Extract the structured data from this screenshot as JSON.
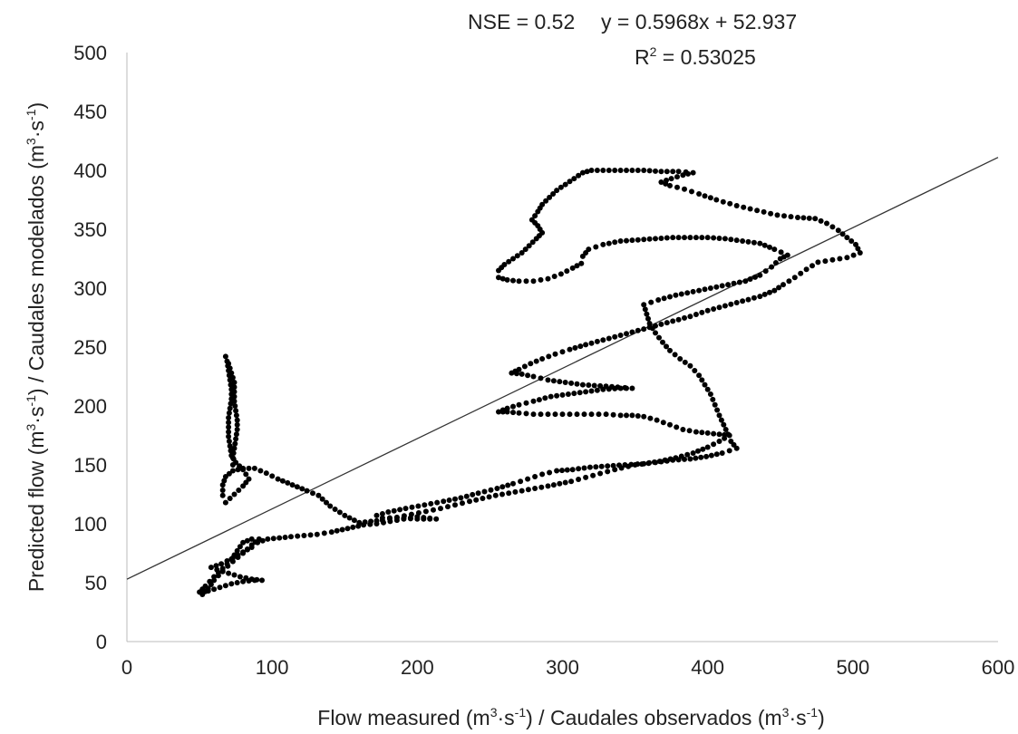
{
  "chart_data": {
    "type": "scatter",
    "title": "",
    "annotations": {
      "nse": "NSE = 0.52",
      "equation": "y = 0.5968x + 52.937",
      "r2_prefix": "R",
      "r2_power": "2",
      "r2_value": " = 0.53025"
    },
    "xlabel": {
      "part1": "Flow measured (m",
      "sup1": "3",
      "part2": "·s",
      "sup2": "-1",
      "part3": ") / Caudales observados (m",
      "sup3": "3",
      "part4": "·s",
      "sup4": "-1",
      "part5": ")"
    },
    "ylabel": {
      "part1": "Predicted flow (m",
      "sup1": "3",
      "part2": "·s",
      "sup2": "-1",
      "part3": ") / Caudales modelados (m",
      "sup3": "3",
      "part4": "·s",
      "sup4": "-1",
      "part5": ")"
    },
    "xlim": [
      0,
      600
    ],
    "ylim": [
      0,
      500
    ],
    "x_ticks": [
      0,
      100,
      200,
      300,
      400,
      500,
      600
    ],
    "y_ticks": [
      0,
      50,
      100,
      150,
      200,
      250,
      300,
      350,
      400,
      450,
      500
    ],
    "grid": false,
    "legend": "none",
    "trendline": {
      "slope": 0.5968,
      "intercept": 52.937
    },
    "colors": {
      "points": "#000000",
      "trendline": "#333333",
      "axis": "#bbbbbb"
    },
    "path": [
      [
        52,
        40
      ],
      [
        56,
        45
      ],
      [
        60,
        52
      ],
      [
        66,
        60
      ],
      [
        73,
        68
      ],
      [
        80,
        75
      ],
      [
        86,
        82
      ],
      [
        91,
        87
      ],
      [
        86,
        87
      ],
      [
        80,
        84
      ],
      [
        76,
        77
      ],
      [
        72,
        70
      ],
      [
        66,
        62
      ],
      [
        60,
        55
      ],
      [
        54,
        47
      ],
      [
        50,
        42
      ],
      [
        56,
        43
      ],
      [
        64,
        46
      ],
      [
        72,
        49
      ],
      [
        80,
        51
      ],
      [
        88,
        52
      ],
      [
        93,
        52
      ],
      [
        86,
        53
      ],
      [
        78,
        55
      ],
      [
        70,
        58
      ],
      [
        62,
        61
      ],
      [
        58,
        63
      ],
      [
        65,
        66
      ],
      [
        73,
        71
      ],
      [
        80,
        76
      ],
      [
        86,
        80
      ],
      [
        90,
        84
      ],
      [
        97,
        87
      ],
      [
        105,
        88
      ],
      [
        113,
        89
      ],
      [
        122,
        90
      ],
      [
        131,
        91
      ],
      [
        141,
        93
      ],
      [
        152,
        96
      ],
      [
        163,
        99
      ],
      [
        172,
        100
      ],
      [
        186,
        103
      ],
      [
        200,
        106
      ],
      [
        213,
        104
      ],
      [
        200,
        104
      ],
      [
        186,
        105
      ],
      [
        176,
        105
      ],
      [
        172,
        107
      ],
      [
        180,
        110
      ],
      [
        192,
        113
      ],
      [
        205,
        116
      ],
      [
        218,
        119
      ],
      [
        230,
        122
      ],
      [
        242,
        126
      ],
      [
        255,
        130
      ],
      [
        266,
        134
      ],
      [
        276,
        138
      ],
      [
        286,
        142
      ],
      [
        296,
        145
      ],
      [
        307,
        146
      ],
      [
        319,
        148
      ],
      [
        331,
        149
      ],
      [
        343,
        150
      ],
      [
        356,
        151
      ],
      [
        367,
        153
      ],
      [
        378,
        156
      ],
      [
        390,
        160
      ],
      [
        400,
        165
      ],
      [
        408,
        170
      ],
      [
        415,
        175
      ],
      [
        408,
        176
      ],
      [
        400,
        177
      ],
      [
        392,
        178
      ],
      [
        383,
        180
      ],
      [
        374,
        184
      ],
      [
        365,
        188
      ],
      [
        356,
        191
      ],
      [
        348,
        192
      ],
      [
        340,
        192
      ],
      [
        330,
        193
      ],
      [
        320,
        193
      ],
      [
        310,
        193
      ],
      [
        300,
        193
      ],
      [
        290,
        193
      ],
      [
        280,
        193
      ],
      [
        270,
        194
      ],
      [
        262,
        195
      ],
      [
        256,
        195
      ],
      [
        262,
        198
      ],
      [
        270,
        201
      ],
      [
        280,
        204
      ],
      [
        292,
        208
      ],
      [
        304,
        210
      ],
      [
        316,
        212
      ],
      [
        328,
        214
      ],
      [
        340,
        215
      ],
      [
        348,
        215
      ],
      [
        338,
        216
      ],
      [
        326,
        217
      ],
      [
        314,
        218
      ],
      [
        302,
        220
      ],
      [
        290,
        222
      ],
      [
        280,
        225
      ],
      [
        272,
        227
      ],
      [
        265,
        228
      ],
      [
        270,
        231
      ],
      [
        278,
        236
      ],
      [
        286,
        240
      ],
      [
        295,
        244
      ],
      [
        305,
        248
      ],
      [
        316,
        252
      ],
      [
        328,
        256
      ],
      [
        340,
        260
      ],
      [
        352,
        264
      ],
      [
        364,
        268
      ],
      [
        376,
        272
      ],
      [
        388,
        276
      ],
      [
        400,
        281
      ],
      [
        412,
        285
      ],
      [
        424,
        289
      ],
      [
        436,
        293
      ],
      [
        446,
        298
      ],
      [
        452,
        303
      ],
      [
        460,
        309
      ],
      [
        468,
        316
      ],
      [
        476,
        322
      ],
      [
        486,
        324
      ],
      [
        496,
        326
      ],
      [
        505,
        330
      ],
      [
        502,
        337
      ],
      [
        496,
        343
      ],
      [
        490,
        349
      ],
      [
        482,
        355
      ],
      [
        474,
        359
      ],
      [
        462,
        360
      ],
      [
        448,
        362
      ],
      [
        434,
        366
      ],
      [
        420,
        370
      ],
      [
        406,
        375
      ],
      [
        394,
        380
      ],
      [
        384,
        384
      ],
      [
        374,
        387
      ],
      [
        368,
        390
      ],
      [
        375,
        393
      ],
      [
        383,
        396
      ],
      [
        390,
        398
      ],
      [
        380,
        399
      ],
      [
        368,
        399
      ],
      [
        356,
        400
      ],
      [
        344,
        400
      ],
      [
        332,
        400
      ],
      [
        320,
        400
      ],
      [
        314,
        398
      ],
      [
        308,
        393
      ],
      [
        302,
        388
      ],
      [
        296,
        383
      ],
      [
        291,
        377
      ],
      [
        286,
        371
      ],
      [
        283,
        365
      ],
      [
        279,
        358
      ],
      [
        283,
        353
      ],
      [
        286,
        347
      ],
      [
        282,
        342
      ],
      [
        277,
        336
      ],
      [
        272,
        330
      ],
      [
        266,
        325
      ],
      [
        260,
        320
      ],
      [
        256,
        315
      ],
      [
        256,
        309
      ],
      [
        262,
        307
      ],
      [
        270,
        306
      ],
      [
        280,
        306
      ],
      [
        290,
        308
      ],
      [
        299,
        312
      ],
      [
        307,
        317
      ],
      [
        313,
        321
      ],
      [
        314,
        327
      ],
      [
        318,
        333
      ],
      [
        328,
        337
      ],
      [
        340,
        340
      ],
      [
        352,
        341
      ],
      [
        364,
        342
      ],
      [
        376,
        343
      ],
      [
        388,
        343
      ],
      [
        400,
        343
      ],
      [
        412,
        342
      ],
      [
        424,
        340
      ],
      [
        436,
        338
      ],
      [
        446,
        333
      ],
      [
        455,
        328
      ],
      [
        450,
        325
      ],
      [
        444,
        318
      ],
      [
        436,
        311
      ],
      [
        426,
        306
      ],
      [
        414,
        303
      ],
      [
        402,
        300
      ],
      [
        390,
        297
      ],
      [
        378,
        294
      ],
      [
        366,
        290
      ],
      [
        356,
        286
      ],
      [
        358,
        278
      ],
      [
        360,
        270
      ],
      [
        364,
        262
      ],
      [
        369,
        254
      ],
      [
        374,
        247
      ],
      [
        381,
        240
      ],
      [
        388,
        234
      ],
      [
        394,
        226
      ],
      [
        398,
        218
      ],
      [
        402,
        210
      ],
      [
        405,
        201
      ],
      [
        408,
        192
      ],
      [
        411,
        184
      ],
      [
        414,
        176
      ],
      [
        416,
        170
      ],
      [
        420,
        164
      ],
      [
        410,
        160
      ],
      [
        399,
        157
      ],
      [
        388,
        155
      ],
      [
        376,
        154
      ],
      [
        364,
        152
      ],
      [
        350,
        150
      ],
      [
        336,
        146
      ],
      [
        321,
        141
      ],
      [
        306,
        136
      ],
      [
        290,
        132
      ],
      [
        272,
        128
      ],
      [
        254,
        124
      ],
      [
        236,
        119
      ],
      [
        216,
        113
      ],
      [
        196,
        108
      ],
      [
        176,
        103
      ],
      [
        160,
        101
      ],
      [
        150,
        107
      ],
      [
        140,
        115
      ],
      [
        132,
        124
      ],
      [
        124,
        128
      ],
      [
        114,
        133
      ],
      [
        104,
        138
      ],
      [
        96,
        143
      ],
      [
        88,
        147
      ],
      [
        80,
        147
      ],
      [
        73,
        145
      ],
      [
        68,
        140
      ],
      [
        66,
        133
      ],
      [
        66,
        124
      ],
      [
        68,
        118
      ],
      [
        74,
        125
      ],
      [
        80,
        132
      ],
      [
        84,
        138
      ],
      [
        80,
        146
      ],
      [
        75,
        152
      ],
      [
        72,
        158
      ],
      [
        71,
        166
      ],
      [
        70,
        174
      ],
      [
        70,
        182
      ],
      [
        70,
        190
      ],
      [
        71,
        198
      ],
      [
        72,
        206
      ],
      [
        72,
        214
      ],
      [
        71,
        222
      ],
      [
        70,
        230
      ],
      [
        69,
        238
      ],
      [
        68,
        242
      ],
      [
        70,
        236
      ],
      [
        72,
        228
      ],
      [
        74,
        220
      ],
      [
        74,
        212
      ],
      [
        74,
        204
      ],
      [
        75,
        196
      ],
      [
        76,
        188
      ],
      [
        76,
        180
      ],
      [
        75,
        172
      ],
      [
        74,
        164
      ],
      [
        73,
        156
      ],
      [
        73,
        150
      ]
    ]
  }
}
